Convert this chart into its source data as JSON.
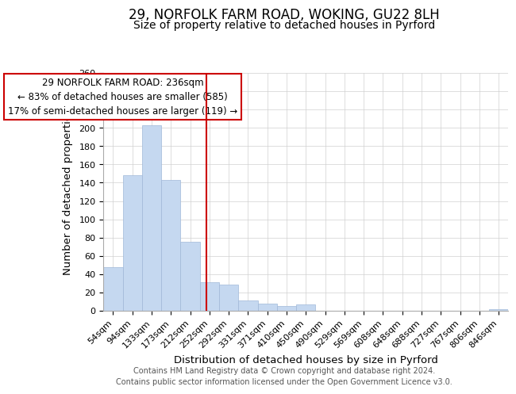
{
  "title": "29, NORFOLK FARM ROAD, WOKING, GU22 8LH",
  "subtitle": "Size of property relative to detached houses in Pyrford",
  "xlabel": "Distribution of detached houses by size in Pyrford",
  "ylabel": "Number of detached properties",
  "bar_labels": [
    "54sqm",
    "94sqm",
    "133sqm",
    "173sqm",
    "212sqm",
    "252sqm",
    "292sqm",
    "331sqm",
    "371sqm",
    "410sqm",
    "450sqm",
    "490sqm",
    "529sqm",
    "569sqm",
    "608sqm",
    "648sqm",
    "688sqm",
    "727sqm",
    "767sqm",
    "806sqm",
    "846sqm"
  ],
  "bar_values": [
    48,
    148,
    203,
    143,
    75,
    31,
    29,
    11,
    8,
    5,
    7,
    0,
    0,
    0,
    0,
    0,
    0,
    0,
    0,
    0,
    2
  ],
  "bar_color": "#c5d8f0",
  "bar_edge_color": "#a0b8d8",
  "ylim": [
    0,
    260
  ],
  "yticks": [
    0,
    20,
    40,
    60,
    80,
    100,
    120,
    140,
    160,
    180,
    200,
    220,
    240,
    260
  ],
  "vline_x": 4.82,
  "vline_color": "#cc0000",
  "annotation_box_text": "29 NORFOLK FARM ROAD: 236sqm\n← 83% of detached houses are smaller (585)\n17% of semi-detached houses are larger (119) →",
  "footer_line1": "Contains HM Land Registry data © Crown copyright and database right 2024.",
  "footer_line2": "Contains public sector information licensed under the Open Government Licence v3.0.",
  "title_fontsize": 12,
  "subtitle_fontsize": 10,
  "axis_label_fontsize": 9.5,
  "tick_fontsize": 8,
  "annotation_fontsize": 8.5,
  "footer_fontsize": 7
}
